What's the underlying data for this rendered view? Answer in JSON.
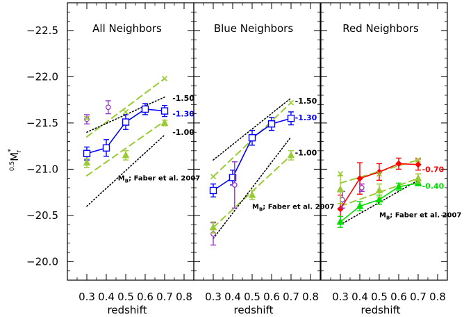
{
  "figure": {
    "ylabel_prefix": "0.5",
    "ylabel_main": "M",
    "ylabel_sub": "r",
    "ylabel_sup": "*",
    "mb_prefix": "M",
    "mb_sub": "B",
    "mb_suffix": "; Faber et al. 2007"
  },
  "chart_data": [
    {
      "type": "scatter",
      "title": "All Neighbors",
      "xlabel": "redshift",
      "ylabel": "0.5M*r",
      "xlim": [
        0.2,
        0.85
      ],
      "ylim": [
        -19.8,
        -22.8
      ],
      "y_inverted": true,
      "xticks": [
        0.3,
        0.4,
        0.5,
        0.6,
        0.7,
        0.8
      ],
      "yticks": [
        -20.0,
        -20.5,
        -21.0,
        -21.5,
        -22.0,
        -22.5
      ],
      "ytick_labels": [
        "−20.0",
        "−20.5",
        "−21.0",
        "−21.5",
        "−22.0",
        "−22.5"
      ],
      "series": [
        {
          "marker": "square",
          "color": "#0000ff",
          "connect": true,
          "x": [
            0.3,
            0.4,
            0.5,
            0.6,
            0.7
          ],
          "y": [
            -21.17,
            -21.23,
            -21.51,
            -21.65,
            -21.63
          ],
          "yerr": [
            0.07,
            0.09,
            0.08,
            0.06,
            0.06
          ]
        },
        {
          "marker": "circle",
          "color": "#9933cc",
          "connect": false,
          "x": [
            0.3,
            0.41
          ],
          "y": [
            -21.54,
            -21.67
          ],
          "yerr": [
            0.05,
            0.07
          ]
        },
        {
          "marker": "triangle",
          "color": "#99cc33",
          "connect": false,
          "x": [
            0.3,
            0.5,
            0.7
          ],
          "y": [
            -21.07,
            -21.15,
            -21.5
          ],
          "yerr": [
            0.05,
            0.05,
            0.03
          ]
        },
        {
          "marker": "x",
          "color": "#99cc33",
          "connect": false,
          "x": [
            0.3,
            0.5,
            0.7
          ],
          "y": [
            -21.55,
            -21.62,
            -21.98
          ],
          "yerr": []
        }
      ],
      "model_lines": [
        {
          "style": "dashed",
          "color": "#99cc33",
          "x": [
            0.3,
            0.7
          ],
          "y": [
            -21.35,
            -21.98
          ]
        },
        {
          "style": "dashed",
          "color": "#99cc33",
          "x": [
            0.3,
            0.7
          ],
          "y": [
            -20.93,
            -21.52
          ]
        },
        {
          "style": "dotted",
          "color": "#000000",
          "x": [
            0.3,
            0.7
          ],
          "y": [
            -21.4,
            -21.78
          ]
        },
        {
          "style": "dotted",
          "color": "#000000",
          "x": [
            0.3,
            0.7
          ],
          "y": [
            -20.6,
            -21.37
          ]
        }
      ],
      "annotations": [
        {
          "text": "-1.50",
          "color": "#000000",
          "x": 0.74,
          "y": -21.77
        },
        {
          "text": "-1.30",
          "color": "#0000ff",
          "x": 0.74,
          "y": -21.6
        },
        {
          "text": "-1.00",
          "color": "#000000",
          "x": 0.74,
          "y": -21.4
        }
      ],
      "mb_label": {
        "x": 0.46,
        "y": -20.88
      }
    },
    {
      "type": "scatter",
      "title": "Blue Neighbors",
      "xlabel": "redshift",
      "xlim": [
        0.2,
        0.85
      ],
      "ylim": [
        -19.8,
        -22.8
      ],
      "xticks": [
        0.3,
        0.4,
        0.5,
        0.6,
        0.7,
        0.8
      ],
      "series": [
        {
          "marker": "square",
          "color": "#0000ff",
          "connect": true,
          "x": [
            0.3,
            0.4,
            0.5,
            0.6,
            0.7
          ],
          "y": [
            -20.77,
            -20.91,
            -21.34,
            -21.49,
            -21.55
          ],
          "yerr": [
            0.07,
            0.08,
            0.08,
            0.07,
            0.07
          ]
        },
        {
          "marker": "circle",
          "color": "#9933cc",
          "connect": false,
          "x": [
            0.3,
            0.41
          ],
          "y": [
            -20.3,
            -20.83
          ],
          "yerr": [
            0.12,
            0.25
          ]
        },
        {
          "marker": "triangle",
          "color": "#99cc33",
          "connect": false,
          "x": [
            0.3,
            0.5,
            0.7
          ],
          "y": [
            -20.37,
            -20.72,
            -21.15
          ],
          "yerr": [
            0.06,
            0.05,
            0.05
          ]
        },
        {
          "marker": "x",
          "color": "#99cc33",
          "connect": false,
          "x": [
            0.3,
            0.7
          ],
          "y": [
            -20.92,
            -21.72
          ],
          "yerr": []
        }
      ],
      "model_lines": [
        {
          "style": "dashed",
          "color": "#99cc33",
          "x": [
            0.3,
            0.7
          ],
          "y": [
            -20.92,
            -21.72
          ]
        },
        {
          "style": "dashed",
          "color": "#99cc33",
          "x": [
            0.3,
            0.7
          ],
          "y": [
            -20.37,
            -21.15
          ]
        },
        {
          "style": "dotted",
          "color": "#000000",
          "x": [
            0.3,
            0.7
          ],
          "y": [
            -21.1,
            -21.77
          ]
        },
        {
          "style": "dotted",
          "color": "#000000",
          "x": [
            0.3,
            0.7
          ],
          "y": [
            -20.25,
            -21.35
          ]
        }
      ],
      "annotations": [
        {
          "text": "-1.50",
          "color": "#000000",
          "x": 0.72,
          "y": -21.74
        },
        {
          "text": "-1.30",
          "color": "#0000ff",
          "x": 0.72,
          "y": -21.56
        },
        {
          "text": "-1.00",
          "color": "#000000",
          "x": 0.72,
          "y": -21.18
        }
      ],
      "mb_label": {
        "x": 0.5,
        "y": -20.57
      }
    },
    {
      "type": "scatter",
      "title": "Red Neighbors",
      "xlabel": "redshift",
      "xlim": [
        0.2,
        0.85
      ],
      "ylim": [
        -19.8,
        -22.8
      ],
      "xticks": [
        0.3,
        0.4,
        0.5,
        0.6,
        0.7,
        0.8
      ],
      "series": [
        {
          "marker": "diamond",
          "color": "#ff0000",
          "connect": true,
          "x": [
            0.3,
            0.4,
            0.5,
            0.6,
            0.7
          ],
          "y": [
            -20.57,
            -20.9,
            -20.97,
            -21.06,
            -21.05
          ],
          "yerr": [
            0.15,
            0.17,
            0.09,
            0.06,
            0.06
          ]
        },
        {
          "marker": "triangle",
          "color": "#00dd00",
          "connect": true,
          "x": [
            0.3,
            0.4,
            0.5,
            0.6,
            0.7
          ],
          "y": [
            -20.43,
            -20.6,
            -20.67,
            -20.81,
            -20.85
          ],
          "yerr": [
            0.06,
            0.05,
            0.05,
            0.04,
            0.03
          ]
        },
        {
          "marker": "circle",
          "color": "#9933cc",
          "connect": false,
          "x": [
            0.31,
            0.41
          ],
          "y": [
            -20.67,
            -20.8
          ],
          "yerr": [
            0.09,
            0.04
          ]
        },
        {
          "marker": "triangle",
          "color": "#99cc33",
          "connect": false,
          "x": [
            0.3,
            0.5,
            0.7
          ],
          "y": [
            -20.78,
            -20.77,
            -20.9
          ],
          "yerr": [
            0.15,
            0.07,
            0.05
          ]
        },
        {
          "marker": "x",
          "color": "#99cc33",
          "connect": false,
          "x": [
            0.3,
            0.5,
            0.7
          ],
          "y": [
            -20.95,
            -20.95,
            -21.1
          ],
          "yerr": []
        }
      ],
      "model_lines": [
        {
          "style": "dashed",
          "color": "#99cc33",
          "x": [
            0.3,
            0.7
          ],
          "y": [
            -20.85,
            -21.1
          ]
        },
        {
          "style": "dashed",
          "color": "#99cc33",
          "x": [
            0.3,
            0.7
          ],
          "y": [
            -20.6,
            -20.9
          ]
        },
        {
          "style": "dotted",
          "color": "#000000",
          "x": [
            0.3,
            0.7
          ],
          "y": [
            -20.4,
            -20.88
          ]
        }
      ],
      "annotations": [
        {
          "text": "-0.70",
          "color": "#ff0000",
          "x": 0.72,
          "y": -21.0
        },
        {
          "text": "-0.40",
          "color": "#00dd00",
          "x": 0.72,
          "y": -20.82
        }
      ],
      "mb_label": {
        "x": 0.5,
        "y": -20.48
      }
    }
  ]
}
